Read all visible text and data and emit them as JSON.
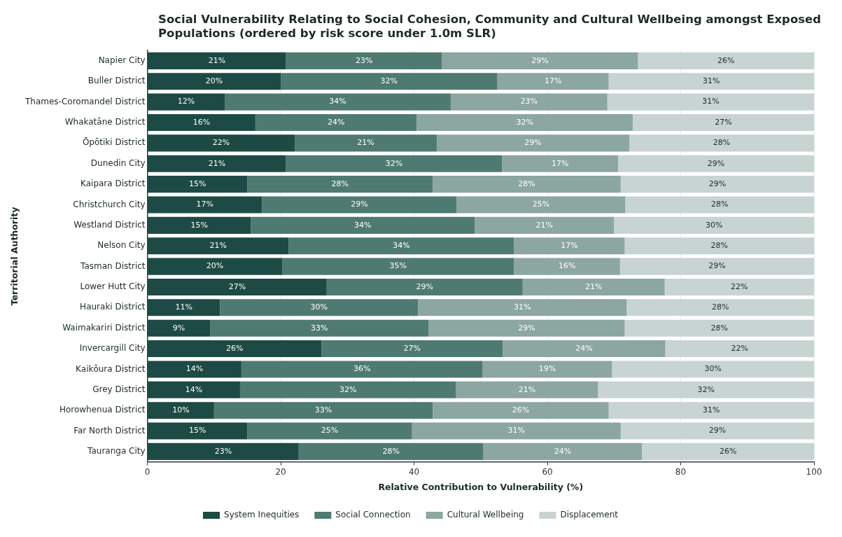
{
  "chart_data": {
    "type": "bar",
    "orientation": "horizontal",
    "stacked": true,
    "title": "Social Vulnerability Relating to Social Cohesion, Community and Cultural Wellbeing amongst Exposed Populations (ordered by risk score under 1.0m SLR)",
    "xlabel": "Relative Contribution to Vulnerability (%)",
    "ylabel": "Territorial Authority",
    "categories": [
      "Napier City",
      "Buller District",
      "Thames-Coromandel District",
      "Whakatāne District",
      "Ōpōtiki District",
      "Dunedin City",
      "Kaipara District",
      "Christchurch City",
      "Westland District",
      "Nelson City",
      "Tasman District",
      "Lower Hutt City",
      "Hauraki District",
      "Waimakariri District",
      "Invercargill City",
      "Kaikōura District",
      "Grey District",
      "Horowhenua District",
      "Far North District",
      "Tauranga City"
    ],
    "xlim": [
      0,
      100
    ],
    "xticks": [
      0,
      20,
      40,
      60,
      80,
      100
    ],
    "grid": "x",
    "legend": "bottom",
    "series": [
      {
        "name": "System Inequities",
        "color": "#1d4a44",
        "values": [
          20.8,
          20.0,
          11.6,
          16.2,
          22.1,
          20.8,
          15.0,
          17.2,
          15.5,
          21.2,
          20.2,
          26.9,
          10.9,
          9.4,
          26.1,
          14.1,
          13.9,
          10.0,
          15.0,
          22.7
        ],
        "value_labels": [
          "21%",
          "20%",
          "12%",
          "16%",
          "22%",
          "21%",
          "15%",
          "17%",
          "15%",
          "21%",
          "20%",
          "27%",
          "11%",
          "9%",
          "26%",
          "14%",
          "14%",
          "10%",
          "15%",
          "23%"
        ]
      },
      {
        "name": "Social Connection",
        "color": "#4f7a72",
        "values": [
          23.4,
          32.5,
          33.9,
          24.2,
          21.3,
          32.4,
          27.8,
          29.2,
          33.6,
          33.8,
          34.8,
          29.4,
          29.7,
          32.8,
          27.2,
          36.2,
          32.4,
          32.8,
          24.7,
          27.7
        ],
        "value_labels": [
          "23%",
          "32%",
          "34%",
          "24%",
          "21%",
          "32%",
          "28%",
          "29%",
          "34%",
          "34%",
          "35%",
          "29%",
          "30%",
          "33%",
          "27%",
          "36%",
          "32%",
          "33%",
          "25%",
          "28%"
        ]
      },
      {
        "name": "Cultural Wellbeing",
        "color": "#8ca6a1",
        "values": [
          29.4,
          16.7,
          23.5,
          32.4,
          28.9,
          17.4,
          28.2,
          25.3,
          20.9,
          16.6,
          15.9,
          21.3,
          31.3,
          29.4,
          24.4,
          19.4,
          21.3,
          26.4,
          31.3,
          23.8
        ],
        "value_labels": [
          "29%",
          "17%",
          "23%",
          "32%",
          "29%",
          "17%",
          "28%",
          "25%",
          "21%",
          "17%",
          "16%",
          "21%",
          "31%",
          "29%",
          "24%",
          "19%",
          "21%",
          "26%",
          "31%",
          "24%"
        ]
      },
      {
        "name": "Displacement",
        "color": "#c8d4d2",
        "values": [
          26.4,
          30.8,
          31.0,
          27.2,
          27.7,
          29.4,
          29.0,
          28.3,
          30.0,
          28.4,
          29.1,
          22.4,
          28.1,
          28.4,
          22.3,
          30.3,
          32.4,
          30.8,
          29.0,
          25.8
        ],
        "value_labels": [
          "26%",
          "31%",
          "31%",
          "27%",
          "28%",
          "29%",
          "29%",
          "28%",
          "30%",
          "28%",
          "29%",
          "22%",
          "28%",
          "28%",
          "22%",
          "30%",
          "32%",
          "31%",
          "29%",
          "26%"
        ]
      }
    ]
  }
}
